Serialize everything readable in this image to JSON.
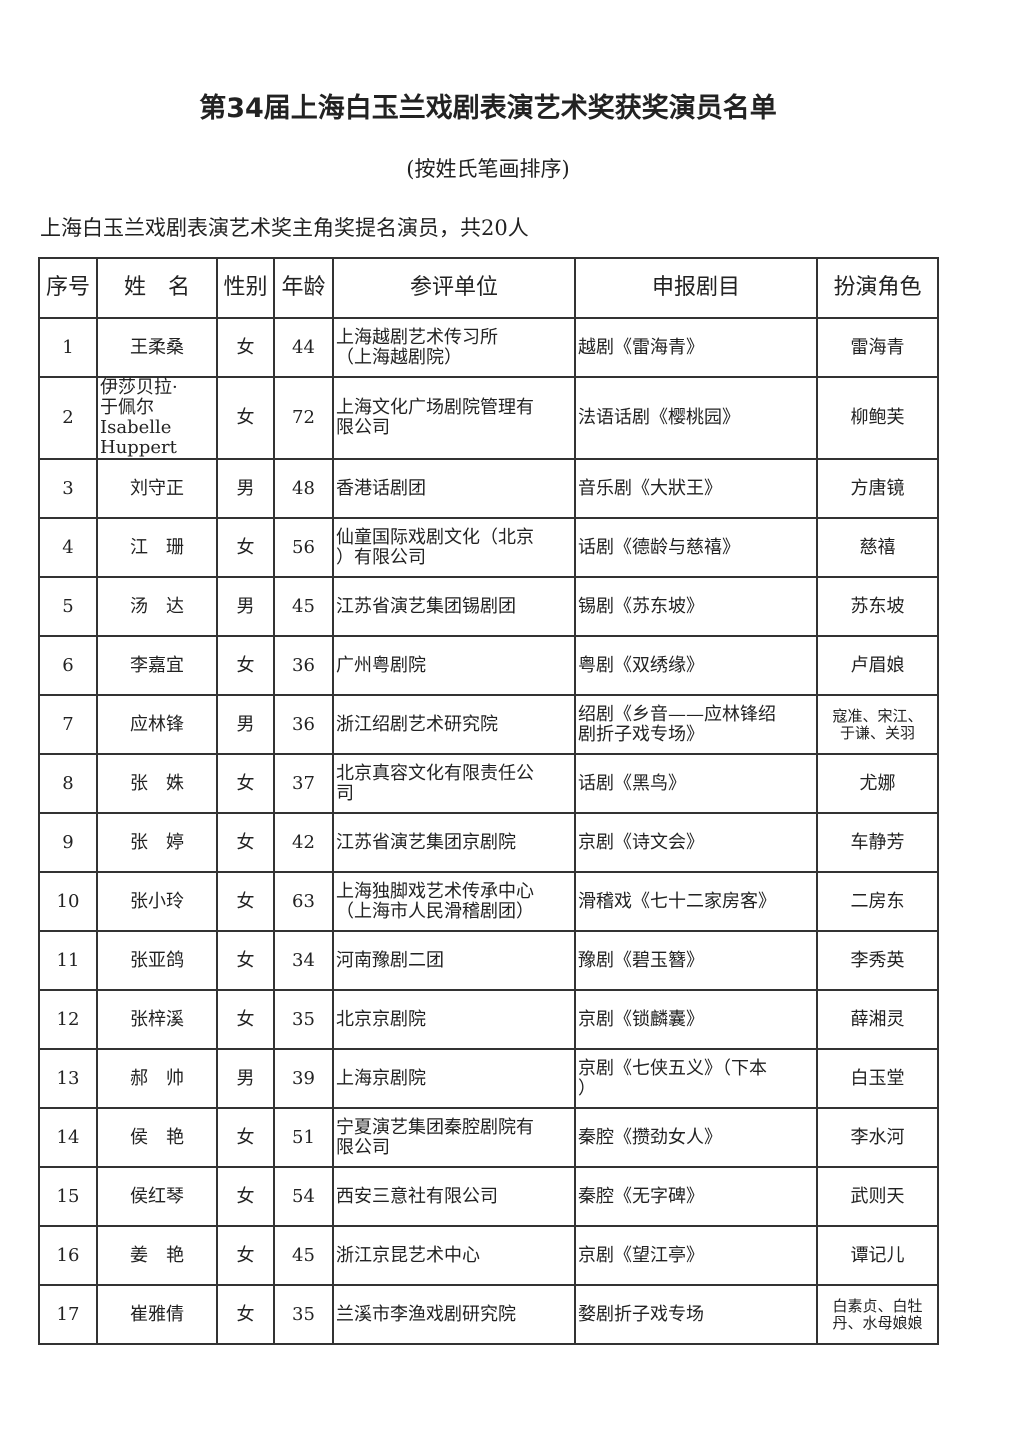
{
  "title": "第34届上海白玉兰戏剧表演艺术奖获奖演员名单",
  "subtitle": "(按姓氏笔画排序)",
  "section": "上海白玉兰戏剧表演艺术奖主角奖提名演员，共20人",
  "table": {
    "headers": [
      "序号",
      "姓　名",
      "性别",
      "年龄",
      "参评单位",
      "申报剧目",
      "扮演角色"
    ],
    "rows": [
      {
        "no": "1",
        "name": "王柔桑",
        "gender": "女",
        "age": "44",
        "unit": "上海越剧艺术传习所\n（上海越剧院）",
        "play": "越剧《雷海青》",
        "role": "雷海青"
      },
      {
        "no": "2",
        "name": "伊莎贝拉·\n于佩尔\nIsabelle\nHuppert",
        "gender": "女",
        "age": "72",
        "unit": "上海文化广场剧院管理有\n限公司",
        "play": "法语话剧《樱桃园》",
        "role": "柳鲍芙"
      },
      {
        "no": "3",
        "name": "刘守正",
        "gender": "男",
        "age": "48",
        "unit": "香港话剧团",
        "play": "音乐剧《大狀王》",
        "role": "方唐镜"
      },
      {
        "no": "4",
        "name": "江　珊",
        "gender": "女",
        "age": "56",
        "unit": "仙童国际戏剧文化（北京\n）有限公司",
        "play": "话剧《德龄与慈禧》",
        "role": "慈禧"
      },
      {
        "no": "5",
        "name": "汤　达",
        "gender": "男",
        "age": "45",
        "unit": "江苏省演艺集团锡剧团",
        "play": "锡剧《苏东坡》",
        "role": "苏东坡"
      },
      {
        "no": "6",
        "name": "李嘉宜",
        "gender": "女",
        "age": "36",
        "unit": "广州粤剧院",
        "play": "粤剧《双绣缘》",
        "role": "卢眉娘"
      },
      {
        "no": "7",
        "name": "应林锋",
        "gender": "男",
        "age": "36",
        "unit": "浙江绍剧艺术研究院",
        "play": "绍剧《乡音——应林锋绍\n剧折子戏专场》",
        "role": "寇准、宋江、\n于谦、关羽"
      },
      {
        "no": "8",
        "name": "张　姝",
        "gender": "女",
        "age": "37",
        "unit": "北京真容文化有限责任公\n司",
        "play": "话剧《黑鸟》",
        "role": "尤娜"
      },
      {
        "no": "9",
        "name": "张　婷",
        "gender": "女",
        "age": "42",
        "unit": "江苏省演艺集团京剧院",
        "play": "京剧《诗文会》",
        "role": "车静芳"
      },
      {
        "no": "10",
        "name": "张小玲",
        "gender": "女",
        "age": "63",
        "unit": "上海独脚戏艺术传承中心\n（上海市人民滑稽剧团）",
        "play": "滑稽戏《七十二家房客》",
        "role": "二房东"
      },
      {
        "no": "11",
        "name": "张亚鸽",
        "gender": "女",
        "age": "34",
        "unit": "河南豫剧二团",
        "play": "豫剧《碧玉簪》",
        "role": "李秀英"
      },
      {
        "no": "12",
        "name": "张梓溪",
        "gender": "女",
        "age": "35",
        "unit": "北京京剧院",
        "play": "京剧《锁麟囊》",
        "role": "薛湘灵"
      },
      {
        "no": "13",
        "name": "郝　帅",
        "gender": "男",
        "age": "39",
        "unit": "上海京剧院",
        "play": "京剧《七侠五义》（下本\n）",
        "role": "白玉堂"
      },
      {
        "no": "14",
        "name": "侯　艳",
        "gender": "女",
        "age": "51",
        "unit": "宁夏演艺集团秦腔剧院有\n限公司",
        "play": "秦腔《攒劲女人》",
        "role": "李水河"
      },
      {
        "no": "15",
        "name": "侯红琴",
        "gender": "女",
        "age": "54",
        "unit": "西安三意社有限公司",
        "play": "秦腔《无字碑》",
        "role": "武则天"
      },
      {
        "no": "16",
        "name": "姜　艳",
        "gender": "女",
        "age": "45",
        "unit": "浙江京昆艺术中心",
        "play": "京剧《望江亭》",
        "role": "谭记儿"
      },
      {
        "no": "17",
        "name": "崔雅倩",
        "gender": "女",
        "age": "35",
        "unit": "兰溪市李渔戏剧研究院",
        "play": "婺剧折子戏专场",
        "role": "白素贞、白牡\n丹、水母娘娘"
      }
    ]
  }
}
